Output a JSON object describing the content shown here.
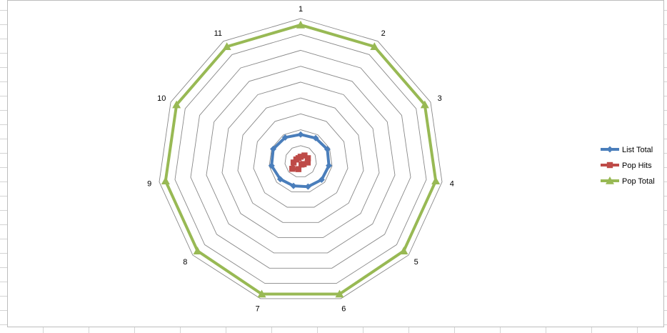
{
  "chart_data": {
    "type": "radar",
    "categories": [
      "1",
      "2",
      "3",
      "4",
      "5",
      "6",
      "7",
      "8",
      "9",
      "10",
      "11"
    ],
    "rmax": 9,
    "rings": 9,
    "series": [
      {
        "name": "List Total",
        "color": "#4a7ebb",
        "marker": "diamond",
        "values": [
          1.7,
          1.75,
          1.85,
          1.8,
          1.75,
          1.65,
          1.6,
          1.7,
          1.85,
          1.9,
          1.8
        ]
      },
      {
        "name": "Pop Hits",
        "color": "#be4b48",
        "marker": "square",
        "values": [
          0.3,
          0.45,
          0.5,
          0.45,
          0.25,
          0.2,
          0.5,
          0.7,
          0.45,
          0.3,
          0.25
        ]
      },
      {
        "name": "Pop Total",
        "color": "#98b954",
        "marker": "triangle",
        "values": [
          8.6,
          8.6,
          8.6,
          8.6,
          8.6,
          8.7,
          8.7,
          8.6,
          8.6,
          8.6,
          8.6
        ]
      }
    ],
    "legend_position": "right",
    "grid": true
  }
}
